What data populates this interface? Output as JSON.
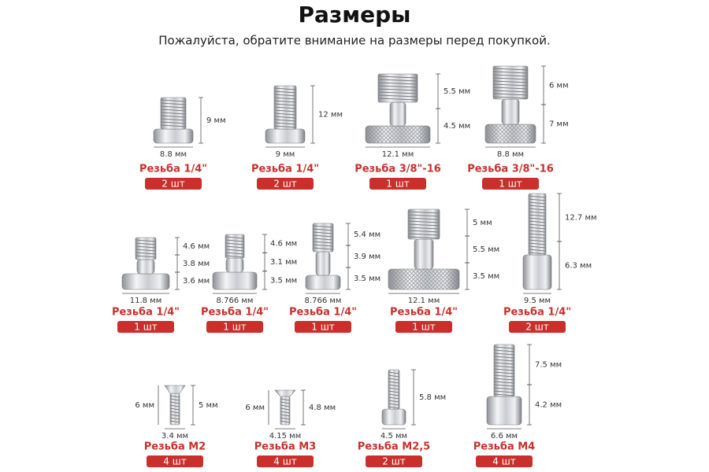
{
  "header": {
    "title": "Размеры",
    "subtitle": "Пожалуйста, обратите внимание на размеры перед покупкой."
  },
  "items": [
    {
      "thread": "Резьба 1/4\"",
      "quantity": "2 шт",
      "width": "8.8 мм",
      "heights": [
        "9 мм"
      ]
    },
    {
      "thread": "Резьба 1/4\"",
      "quantity": "2 шт",
      "width": "9 мм",
      "heights": [
        "12 мм"
      ]
    },
    {
      "thread": "Резьба 3/8\"-16",
      "quantity": "1 шт",
      "width": "12.1 мм",
      "heights": [
        "5.5 мм",
        "4.5 мм"
      ]
    },
    {
      "thread": "Резьба 3/8\"-16",
      "quantity": "1 шт",
      "width": "8.8 мм",
      "heights": [
        "6 мм",
        "7 мм"
      ]
    },
    {
      "thread": "Резьба 1/4\"",
      "quantity": "1 шт",
      "width": "11.8 мм",
      "heights": [
        "4.6 мм",
        "3.8 мм",
        "3.6 мм"
      ]
    },
    {
      "thread": "Резьба 1/4\"",
      "quantity": "1 шт",
      "width": "8.766 мм",
      "heights": [
        "4.6 мм",
        "3.1 мм",
        "3.5 мм"
      ]
    },
    {
      "thread": "Резьба 1/4\"",
      "quantity": "1 шт",
      "width": "8.766 мм",
      "heights": [
        "5.4 мм",
        "3.9 мм",
        "3.5 мм"
      ]
    },
    {
      "thread": "Резьба 1/4\"",
      "quantity": "1 шт",
      "width": "12.1 мм",
      "heights": [
        "5 мм",
        "5.5 мм",
        "3.5 мм"
      ]
    },
    {
      "thread": "Резьба 1/4\"",
      "quantity": "2 шт",
      "width": "9.5 мм",
      "heights": [
        "12.7 мм",
        "6.3 мм"
      ]
    },
    {
      "thread": "Резьба M2",
      "quantity": "4 шт",
      "width": "3.4 мм",
      "heights": [
        "5 мм"
      ],
      "left_height": "6 мм"
    },
    {
      "thread": "Резьба M3",
      "quantity": "4 шт",
      "width": "4.15 мм",
      "heights": [
        "4.8 мм"
      ],
      "left_height": "6 мм"
    },
    {
      "thread": "Резьба M2,5",
      "quantity": "2 шт",
      "width": "4.5 мм",
      "heights": [
        "5.8 мм"
      ]
    },
    {
      "thread": "Резьба M4",
      "quantity": "4 шт",
      "width": "6.6 мм",
      "heights": [
        "7.5 мм",
        "4.2 мм"
      ]
    }
  ]
}
